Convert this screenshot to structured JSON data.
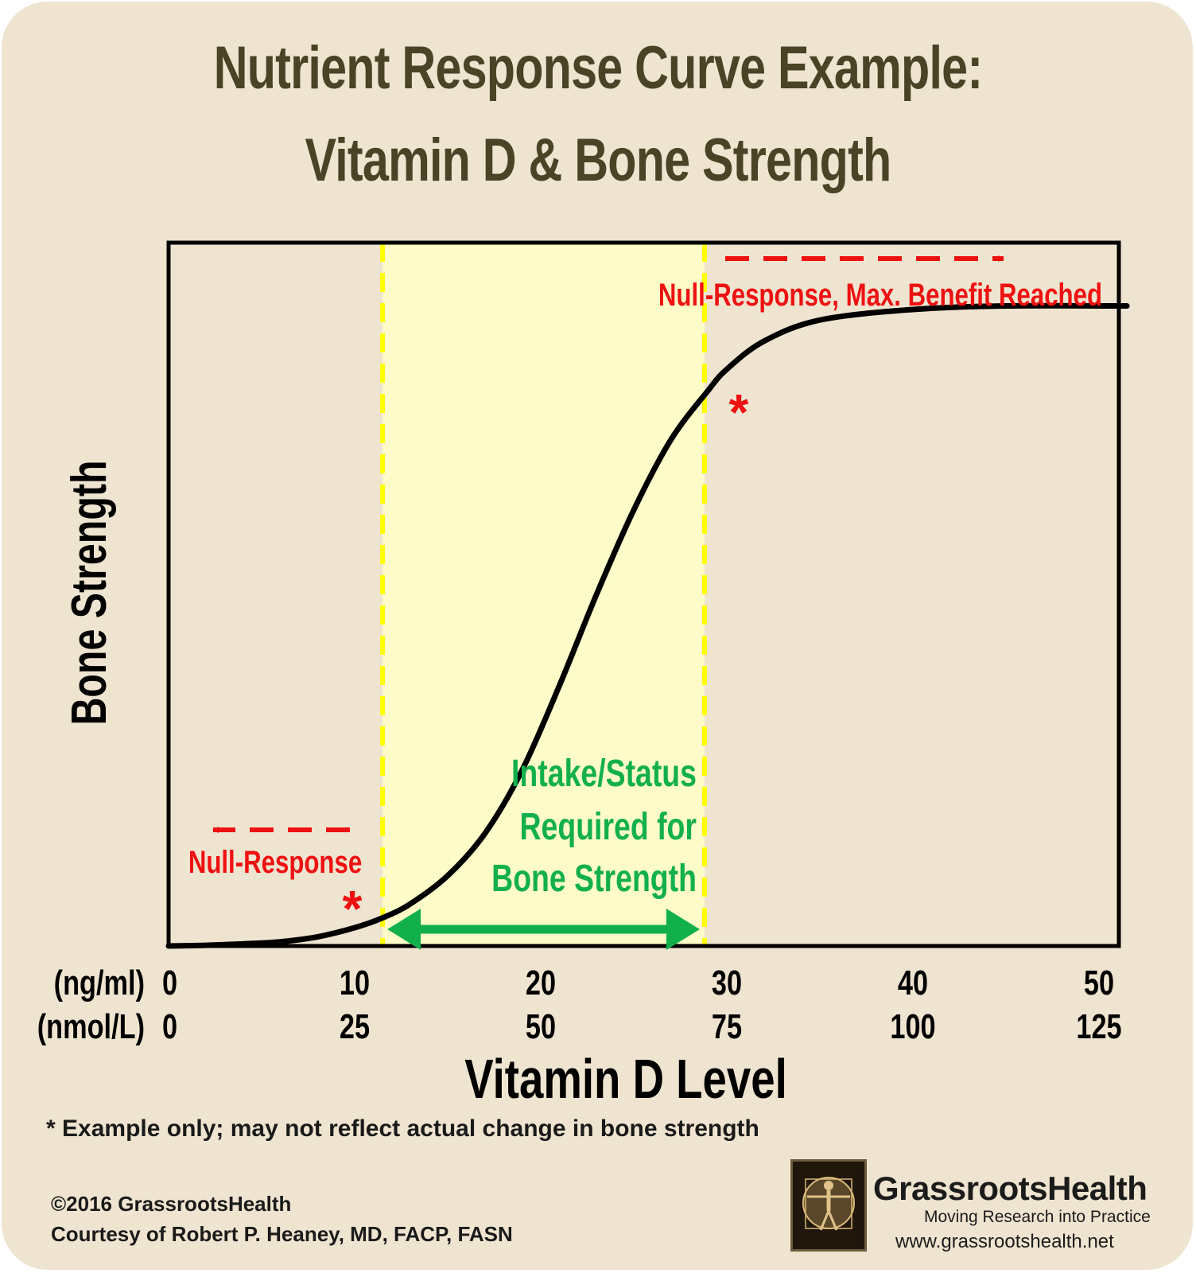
{
  "header": {
    "title_line1": "Nutrient Response Curve Example:",
    "title_line2": "Vitamin D & Bone Strength"
  },
  "chart_data": {
    "type": "line",
    "title": "Nutrient Response Curve Example: Vitamin D & Bone Strength",
    "xlabel": "Vitamin D Level",
    "ylabel": "Bone Strength",
    "xlim": [
      0,
      51.5
    ],
    "x_ticks_ng_ml": [
      "0",
      "10",
      "20",
      "30",
      "40",
      "50"
    ],
    "x_ticks_nmol_l": [
      "0",
      "25",
      "50",
      "75",
      "100",
      "125"
    ],
    "x_unit_primary": "(ng/ml)",
    "x_unit_secondary": "(nmol/L)",
    "grid": false,
    "series": [
      {
        "color": "#000000",
        "x": [
          0,
          2,
          4,
          6,
          8,
          10,
          11.5,
          13,
          15,
          17,
          19,
          21,
          23,
          25,
          27,
          29,
          30,
          32,
          35,
          40,
          45,
          51.5
        ],
        "y": [
          0,
          0.1,
          0.3,
          0.6,
          1.3,
          2.6,
          4.0,
          6.0,
          10,
          16,
          25,
          37,
          50,
          62,
          72,
          79,
          82,
          86,
          89,
          90.5,
          91,
          91
        ]
      }
    ],
    "ylim": [
      0,
      100
    ],
    "shaded_region": {
      "x_start": 11.5,
      "x_end": 28.8,
      "color": "#fdfbc8"
    },
    "boundary_line_color": "#ffff00",
    "annotations": {
      "left_note": "Null-Response",
      "right_note": "Null-Response, Max. Benefit Reached",
      "middle_note_lines": [
        "Intake/Status",
        "Required for",
        "Bone Strength"
      ],
      "asterisk": "*"
    },
    "colors": {
      "annotation_red": "#ee1111",
      "annotation_green": "#12b04c",
      "curve": "#000000"
    }
  },
  "footer": {
    "footnote": "* Example only; may not reflect actual change in bone strength",
    "copyright": "©2016 GrassrootsHealth",
    "courtesy": "Courtesy of Robert P. Heaney, MD, FACP, FASN",
    "brand": "GrassrootsHealth",
    "tagline": "Moving Research into Practice",
    "website": "www.grassrootshealth.net"
  },
  "colors": {
    "background": "#efe4d0",
    "title": "#4a4326"
  }
}
